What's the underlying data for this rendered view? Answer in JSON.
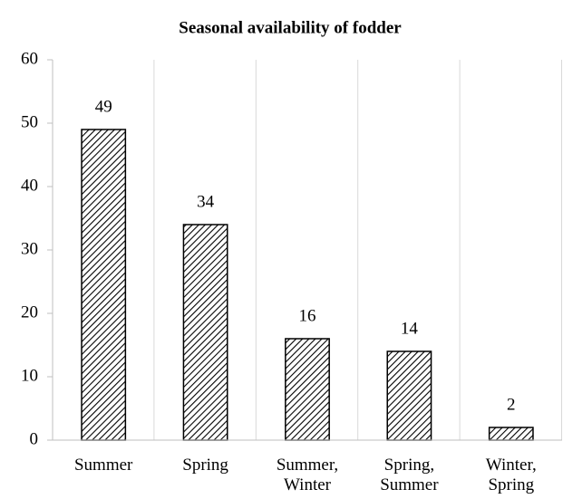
{
  "chart_data": {
    "type": "bar",
    "title": "Seasonal availability of fodder",
    "categories": [
      "Summer",
      "Spring",
      "Summer, Winter",
      "Spring, Summer",
      "Winter, Spring"
    ],
    "values": [
      49,
      34,
      16,
      14,
      2
    ],
    "color": "#000000",
    "ylim": [
      0,
      60
    ],
    "yticks": [
      0,
      10,
      20,
      30,
      40,
      50,
      60
    ],
    "grid": true
  }
}
